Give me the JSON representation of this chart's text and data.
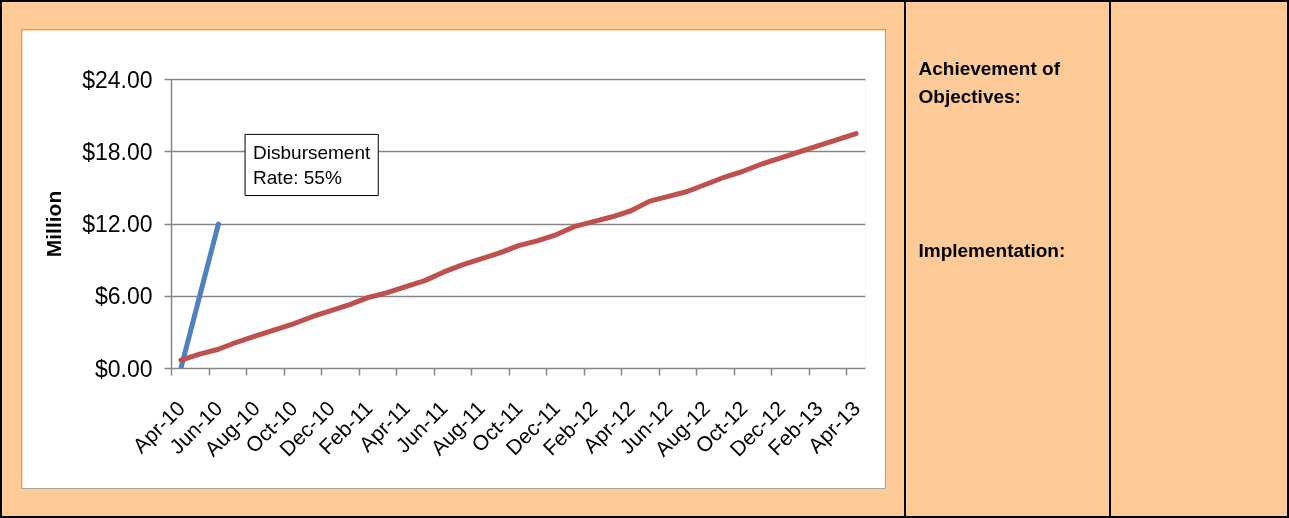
{
  "chart_data": [
    {
      "type": "line",
      "ylabel": "Million",
      "categories": [
        "Apr-10",
        null,
        "Jun-10",
        null,
        "Aug-10",
        null,
        "Oct-10",
        null,
        "Dec-10",
        null,
        "Feb-11",
        null,
        "Apr-11",
        null,
        "Jun-11",
        null,
        "Aug-11",
        null,
        "Oct-11",
        null,
        "Dec-11",
        null,
        "Feb-12",
        null,
        "Apr-12",
        null,
        "Jun-12",
        null,
        "Aug-12",
        null,
        "Oct-12",
        null,
        "Dec-12",
        null,
        "Feb-13",
        null,
        "Apr-13"
      ],
      "series": [
        {
          "color": "#4f81bd",
          "values": [
            0,
            6,
            12,
            null,
            null,
            null,
            null,
            null,
            null,
            null,
            null,
            null,
            null,
            null,
            null,
            null,
            null,
            null,
            null,
            null,
            null,
            null,
            null,
            null,
            null,
            null,
            null,
            null,
            null,
            null,
            null,
            null,
            null,
            null,
            null,
            null,
            null
          ]
        },
        {
          "color": "#c0504d",
          "values": [
            0.7,
            1.2,
            1.6,
            2.2,
            2.7,
            3.2,
            3.7,
            4.3,
            4.8,
            5.3,
            5.9,
            6.3,
            6.8,
            7.3,
            8.0,
            8.6,
            9.1,
            9.6,
            10.2,
            10.6,
            11.1,
            11.8,
            12.2,
            12.6,
            13.1,
            13.9,
            14.3,
            14.7,
            15.3,
            15.9,
            16.4,
            17.0,
            17.5,
            18.0,
            18.5,
            19.0,
            19.5
          ]
        }
      ],
      "ylim": [
        0,
        24
      ],
      "yticks": [
        {
          "value": 0,
          "label": "$0.00"
        },
        {
          "value": 6,
          "label": "$6.00"
        },
        {
          "value": 12,
          "label": "$12.00"
        },
        {
          "value": 18,
          "label": "$18.00"
        },
        {
          "value": 24,
          "label": "$24.00"
        }
      ],
      "grid": "y",
      "annotations": [
        "Disbursement\nRate: 55%"
      ]
    },
    {
      "type": "other",
      "annotations": [
        "Achievement of Objectives:",
        "Implementation:"
      ]
    }
  ]
}
